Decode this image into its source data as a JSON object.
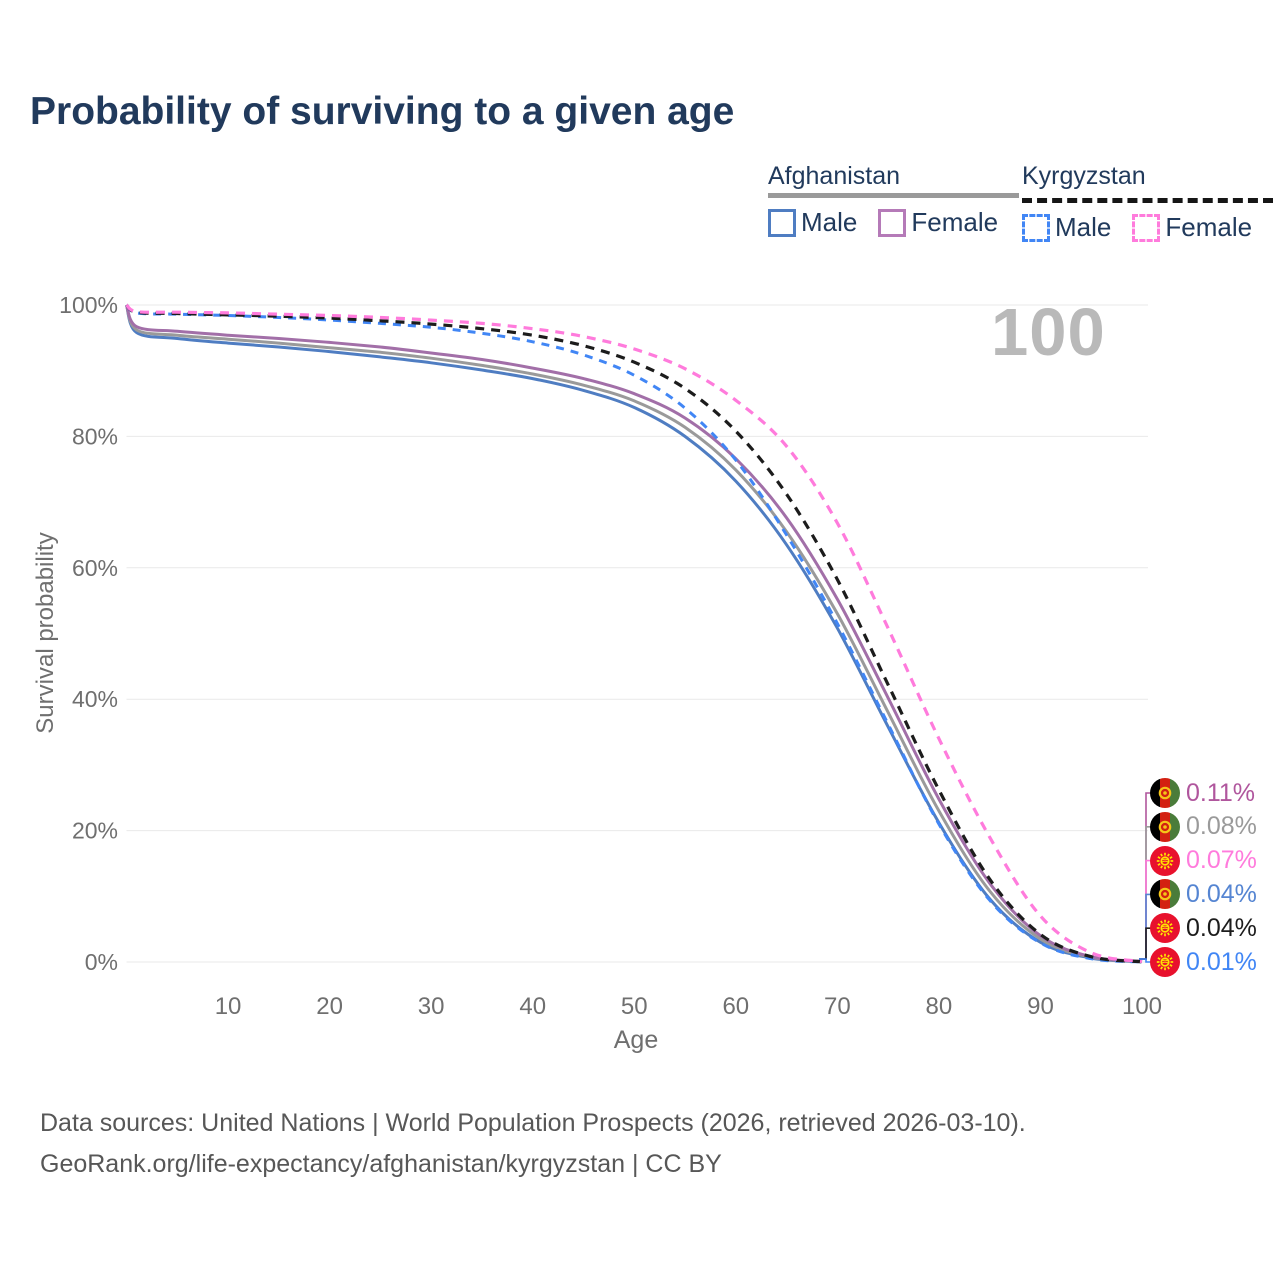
{
  "title": "Probability of surviving to a given age",
  "watermark": "100",
  "legend": {
    "groups": [
      {
        "label": "Afghanistan",
        "line_style": "solid",
        "line_color": "#9a9a9a",
        "items": [
          {
            "label": "Male",
            "swatch_color": "#4f7dc2",
            "swatch_style": "solid"
          },
          {
            "label": "Female",
            "swatch_color": "#b57ab8",
            "swatch_style": "solid"
          }
        ]
      },
      {
        "label": "Kyrgyzstan",
        "line_style": "dashed",
        "line_color": "#161616",
        "items": [
          {
            "label": "Male",
            "swatch_color": "#4186f5",
            "swatch_style": "dashed"
          },
          {
            "label": "Female",
            "swatch_color": "#ff7bdc",
            "swatch_style": "dashed"
          }
        ]
      }
    ]
  },
  "chart_data": {
    "type": "line",
    "title": "Probability of surviving to a given age",
    "xlabel": "Age",
    "ylabel": "Survival probability",
    "xlim": [
      0,
      100
    ],
    "ylim": [
      0,
      100
    ],
    "x_ticks": [
      10,
      20,
      30,
      40,
      50,
      60,
      70,
      80,
      90,
      100
    ],
    "y_ticks": [
      0,
      20,
      40,
      60,
      80,
      100
    ],
    "y_tick_suffix": "%",
    "grid": "horizontal",
    "grid_color": "#e9e9e9",
    "ages": [
      0,
      1,
      5,
      10,
      15,
      20,
      25,
      30,
      35,
      40,
      45,
      50,
      55,
      60,
      65,
      70,
      75,
      80,
      85,
      90,
      95,
      100
    ],
    "series": [
      {
        "name": "Afghanistan Male",
        "country": "Afghanistan",
        "sex": "Male",
        "color": "#4f7dc2",
        "dash": "solid",
        "width": 3,
        "values": [
          100,
          95.8,
          94.9,
          94.2,
          93.6,
          92.9,
          92.1,
          91.2,
          90.1,
          88.8,
          87.0,
          84.4,
          80.0,
          73.2,
          63.5,
          50.8,
          35.8,
          21.2,
          9.6,
          3.0,
          0.6,
          0.04
        ]
      },
      {
        "name": "Afghanistan Both sexes",
        "country": "Afghanistan",
        "sex": "Both",
        "color": "#9a9a9a",
        "dash": "solid",
        "width": 3,
        "values": [
          100,
          96.2,
          95.4,
          94.8,
          94.2,
          93.5,
          92.8,
          91.9,
          90.8,
          89.5,
          87.8,
          85.4,
          81.4,
          74.9,
          65.5,
          53.0,
          38.0,
          23.0,
          10.8,
          3.5,
          0.7,
          0.08
        ]
      },
      {
        "name": "Afghanistan Female",
        "country": "Afghanistan",
        "sex": "Female",
        "color": "#a26fa8",
        "dash": "solid",
        "width": 3,
        "values": [
          100,
          96.7,
          96.0,
          95.4,
          94.9,
          94.3,
          93.6,
          92.7,
          91.7,
          90.4,
          88.8,
          86.5,
          82.8,
          76.6,
          67.6,
          55.2,
          40.2,
          24.8,
          12.0,
          4.0,
          0.8,
          0.11
        ]
      },
      {
        "name": "Kyrgyzstan Male",
        "country": "Kyrgyzstan",
        "sex": "Male",
        "color": "#4186f5",
        "dash": "8 7",
        "width": 3,
        "values": [
          100,
          98.8,
          98.6,
          98.4,
          98.1,
          97.7,
          97.2,
          96.6,
          95.7,
          94.4,
          92.4,
          89.3,
          84.3,
          76.4,
          65.0,
          51.5,
          36.2,
          21.0,
          9.4,
          2.9,
          0.5,
          0.01
        ]
      },
      {
        "name": "Kyrgyzstan Both sexes",
        "country": "Kyrgyzstan",
        "sex": "Both",
        "color": "#1c1c1c",
        "dash": "9 7",
        "width": 3.2,
        "values": [
          100,
          98.9,
          98.7,
          98.5,
          98.3,
          98.0,
          97.6,
          97.1,
          96.4,
          95.4,
          93.8,
          91.3,
          87.3,
          80.8,
          71.2,
          58.2,
          42.2,
          26.2,
          12.6,
          4.2,
          0.8,
          0.04
        ]
      },
      {
        "name": "Kyrgyzstan Female",
        "country": "Kyrgyzstan",
        "sex": "Female",
        "color": "#ff7bdc",
        "dash": "9 7",
        "width": 3.2,
        "values": [
          100,
          99.0,
          98.9,
          98.8,
          98.6,
          98.4,
          98.1,
          97.7,
          97.2,
          96.4,
          95.2,
          93.3,
          90.3,
          85.5,
          78.5,
          66.8,
          50.8,
          34.0,
          19.0,
          7.0,
          1.4,
          0.07
        ]
      }
    ],
    "end_labels": [
      {
        "flag": "afghanistan",
        "value": "0.11%",
        "color": "#b0569d"
      },
      {
        "flag": "afghanistan",
        "value": "0.08%",
        "color": "#9a9a9a"
      },
      {
        "flag": "kyrgyzstan",
        "value": "0.07%",
        "color": "#ff7bdc"
      },
      {
        "flag": "afghanistan",
        "value": "0.04%",
        "color": "#5585d2"
      },
      {
        "flag": "kyrgyzstan",
        "value": "0.04%",
        "color": "#1c1c1c"
      },
      {
        "flag": "kyrgyzstan",
        "value": "0.01%",
        "color": "#4186f5"
      }
    ],
    "legend_position": "top-right"
  },
  "footer": {
    "line1": "Data sources: United Nations | World Population Prospects (2026, retrieved 2026-03-10).",
    "line2": "GeoRank.org/life-expectancy/afghanistan/kyrgyzstan | CC BY"
  }
}
